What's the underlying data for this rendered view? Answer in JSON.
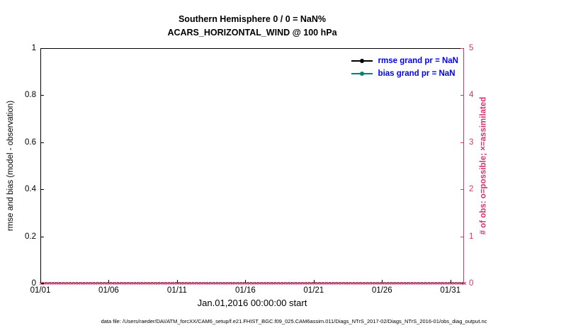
{
  "title": {
    "line1": "Southern Hemisphere 0 / 0 = NaN%",
    "line2": "ACARS_HORIZONTAL_WIND @ 100 hPa"
  },
  "legend_text_color": "#0000ff",
  "legend": [
    {
      "label": "rmse grand pr = NaN",
      "line_color": "#000000",
      "marker": "circle"
    },
    {
      "label": "bias grand pr = NaN",
      "line_color": "#008080",
      "marker": "circle"
    }
  ],
  "axes": {
    "left": {
      "label": "rmse and bias (model - observation)",
      "ticks": [
        "0",
        "0.2",
        "0.4",
        "0.6",
        "0.8",
        "1"
      ],
      "tick_values": [
        0,
        0.2,
        0.4,
        0.6,
        0.8,
        1
      ],
      "range": [
        0,
        1
      ],
      "color": "#000000"
    },
    "right": {
      "label": "# of obs: o=possible; ×=assimilated",
      "ticks": [
        "0",
        "1",
        "2",
        "3",
        "4",
        "5"
      ],
      "tick_values": [
        0,
        1,
        2,
        3,
        4,
        5
      ],
      "range": [
        0,
        5
      ],
      "color": "#d6336c"
    },
    "x": {
      "label": "Jan.01,2016 00:00:00 start",
      "ticks": [
        "01/01",
        "01/06",
        "01/11",
        "01/16",
        "01/21",
        "01/26",
        "01/31"
      ],
      "tick_days": [
        0,
        5,
        10,
        15,
        20,
        25,
        30
      ],
      "range_days": [
        0,
        31
      ]
    }
  },
  "chart_data": {
    "type": "line",
    "title": "Southern Hemisphere 0 / 0 = NaN% — ACARS_HORIZONTAL_WIND @ 100 hPa",
    "xlabel": "Jan.01,2016 00:00:00 start",
    "ylabel_left": "rmse and bias (model - observation)",
    "ylabel_right": "# of obs: o=possible; ×=assimilated",
    "ylim_left": [
      0,
      1
    ],
    "ylim_right": [
      0,
      5
    ],
    "x_range_days": [
      0,
      31
    ],
    "x_tick_labels": [
      "01/01",
      "01/06",
      "01/11",
      "01/16",
      "01/21",
      "01/26",
      "01/31"
    ],
    "grid": false,
    "legend_position": "top-right-inside",
    "series": [
      {
        "name": "rmse grand pr = NaN",
        "axis": "left",
        "color": "#000000",
        "values": null,
        "note": "all NaN, no line drawn"
      },
      {
        "name": "bias grand pr = NaN",
        "axis": "left",
        "color": "#008080",
        "values": null,
        "note": "all NaN, no line drawn"
      }
    ],
    "obs_markers": {
      "marker": "×",
      "color": "#d6336c",
      "y_value": 0,
      "start_day": 0,
      "end_day": 31,
      "interval_days": 0.25,
      "note": "possible and assimilated obs counts are all 0, plotted along the zero line"
    }
  },
  "footer": {
    "text": "data file: /Users/raeder/DAI/ATM_forcXX/CAM6_setup/f.e21.FHIST_BGC.f09_025.CAM6assim.011/Diags_NTrS_2017-02/Diags_NTrS_2016-01/obs_diag_output.nc"
  }
}
